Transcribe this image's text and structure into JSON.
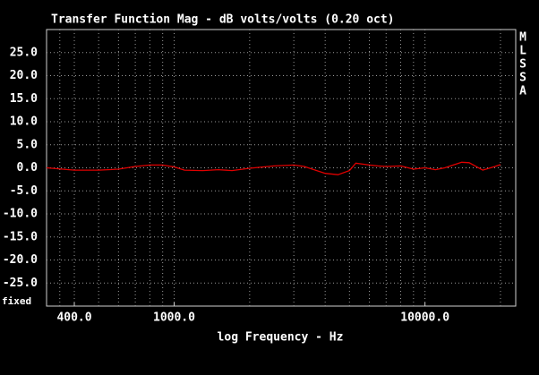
{
  "chart_data": {
    "type": "line",
    "title": "Transfer Function Mag - dB volts/volts (0.20 oct)",
    "x_label": "log Frequency - Hz",
    "side_label": [
      "M",
      "L",
      "S",
      "S",
      "A"
    ],
    "corner_label": "fixed",
    "x_scale": "log",
    "xlim": [
      310,
      23000
    ],
    "ylim": [
      -30,
      30
    ],
    "xticks": [
      {
        "value": 400,
        "label": "400.0"
      },
      {
        "value": 1000,
        "label": "1000.0"
      },
      {
        "value": 10000,
        "label": "10000.0"
      }
    ],
    "xgrid": [
      350,
      400,
      500,
      600,
      700,
      800,
      900,
      1000,
      2000,
      3000,
      4000,
      5000,
      6000,
      7000,
      8000,
      9000,
      10000,
      20000
    ],
    "yticks": [
      {
        "value": 25,
        "label": "25.0"
      },
      {
        "value": 20,
        "label": "20.0"
      },
      {
        "value": 15,
        "label": "15.0"
      },
      {
        "value": 10,
        "label": "10.0"
      },
      {
        "value": 5,
        "label": "5.0"
      },
      {
        "value": 0,
        "label": "0.0"
      },
      {
        "value": -5,
        "label": "-5.0"
      },
      {
        "value": -10,
        "label": "-10.0"
      },
      {
        "value": -15,
        "label": "-15.0"
      },
      {
        "value": -20,
        "label": "-20.0"
      },
      {
        "value": -25,
        "label": "-25.0"
      }
    ],
    "grid": true,
    "series": [
      {
        "color": "#e00000",
        "x": [
          310,
          400,
          500,
          600,
          700,
          800,
          900,
          1000,
          1100,
          1300,
          1500,
          1700,
          2000,
          2500,
          3000,
          3300,
          4000,
          4500,
          5000,
          5300,
          6000,
          6500,
          7000,
          8000,
          9000,
          10000,
          11000,
          12000,
          14000,
          15000,
          17000,
          19000,
          20000
        ],
        "values": [
          0,
          -0.5,
          -0.5,
          -0.3,
          0.3,
          0.6,
          0.6,
          0.2,
          -0.5,
          -0.6,
          -0.4,
          -0.6,
          -0.1,
          0.4,
          0.6,
          0.3,
          -1.2,
          -1.5,
          -0.6,
          1.0,
          0.6,
          0.4,
          0.3,
          0.4,
          -0.3,
          0,
          -0.4,
          0,
          1.2,
          1.1,
          -0.5,
          0.3,
          0.7
        ]
      }
    ]
  }
}
